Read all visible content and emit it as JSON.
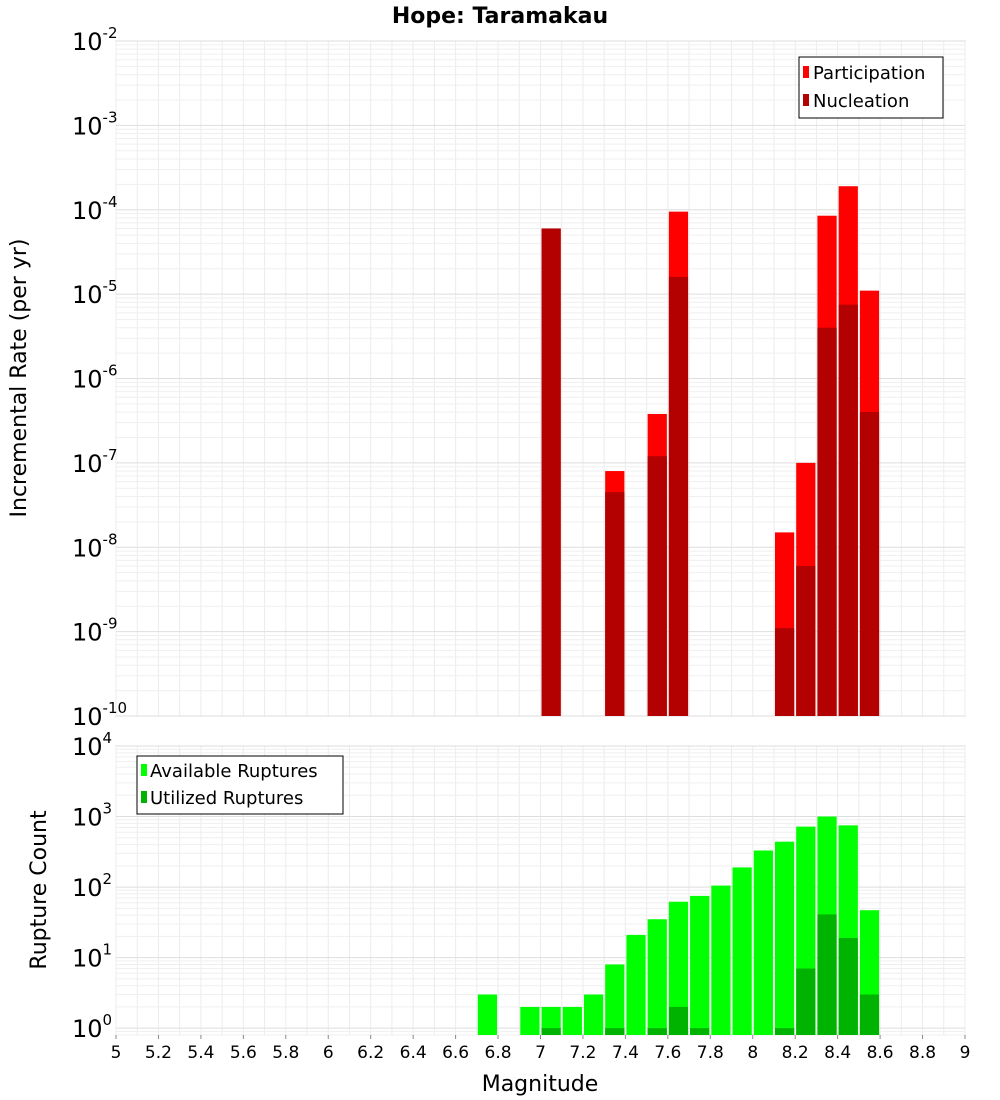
{
  "title": "Hope: Taramakau",
  "chart_data": [
    {
      "type": "bar",
      "ylabel": "Incremental Rate (per yr)",
      "xlabel": "",
      "yscale": "log",
      "ylim": [
        1e-10,
        0.01
      ],
      "xlim": [
        5,
        9
      ],
      "bar_width": 0.1,
      "grid": true,
      "legend_position": "top-right",
      "x": [
        7.05,
        7.35,
        7.55,
        7.65,
        8.15,
        8.25,
        8.35,
        8.45,
        8.55
      ],
      "series": [
        {
          "name": "Participation",
          "color": "#ff0000",
          "values": [
            6e-05,
            8e-08,
            3.8e-07,
            9.5e-05,
            1.5e-08,
            1e-07,
            8.5e-05,
            0.00019,
            1.1e-05
          ]
        },
        {
          "name": "Nucleation",
          "color": "#b30000",
          "values": [
            6e-05,
            4.5e-08,
            1.2e-07,
            1.6e-05,
            1.1e-09,
            6e-09,
            4e-06,
            7.5e-06,
            4e-07
          ]
        }
      ],
      "yticks": [
        {
          "base": "10",
          "exp": "-2"
        },
        {
          "base": "10",
          "exp": "-3"
        },
        {
          "base": "10",
          "exp": "-4"
        },
        {
          "base": "10",
          "exp": "-5"
        },
        {
          "base": "10",
          "exp": "-6"
        },
        {
          "base": "10",
          "exp": "-7"
        },
        {
          "base": "10",
          "exp": "-8"
        },
        {
          "base": "10",
          "exp": "-9"
        },
        {
          "base": "10",
          "exp": "-10"
        }
      ]
    },
    {
      "type": "bar",
      "ylabel": "Rupture Count",
      "xlabel": "Magnitude",
      "yscale": "log",
      "ylim": [
        0.8,
        10000
      ],
      "xlim": [
        5,
        9
      ],
      "bar_width": 0.1,
      "grid": true,
      "legend_position": "top-left",
      "x": [
        6.75,
        6.95,
        7.05,
        7.15,
        7.25,
        7.35,
        7.45,
        7.55,
        7.65,
        7.75,
        7.85,
        7.95,
        8.05,
        8.15,
        8.25,
        8.35,
        8.45,
        8.55
      ],
      "series": [
        {
          "name": "Available Ruptures",
          "color": "#00ff00",
          "values": [
            3,
            2,
            2,
            2,
            3,
            8,
            21,
            35,
            62,
            75,
            105,
            190,
            330,
            440,
            720,
            1000,
            750,
            47
          ]
        },
        {
          "name": "Utilized Ruptures",
          "color": "#00b300",
          "values": [
            0,
            0,
            1,
            0,
            0,
            1,
            0,
            1,
            2,
            1,
            0,
            0,
            0,
            1,
            7,
            41,
            19,
            3
          ]
        }
      ],
      "yticks": [
        {
          "base": "10",
          "exp": "4"
        },
        {
          "base": "10",
          "exp": "3"
        },
        {
          "base": "10",
          "exp": "2"
        },
        {
          "base": "10",
          "exp": "1"
        },
        {
          "base": "10",
          "exp": "0"
        }
      ],
      "xticks": [
        "5",
        "5.2",
        "5.4",
        "5.6",
        "5.8",
        "6",
        "6.2",
        "6.4",
        "6.6",
        "6.8",
        "7",
        "7.2",
        "7.4",
        "7.6",
        "7.8",
        "8",
        "8.2",
        "8.4",
        "8.6",
        "8.8",
        "9"
      ]
    }
  ]
}
